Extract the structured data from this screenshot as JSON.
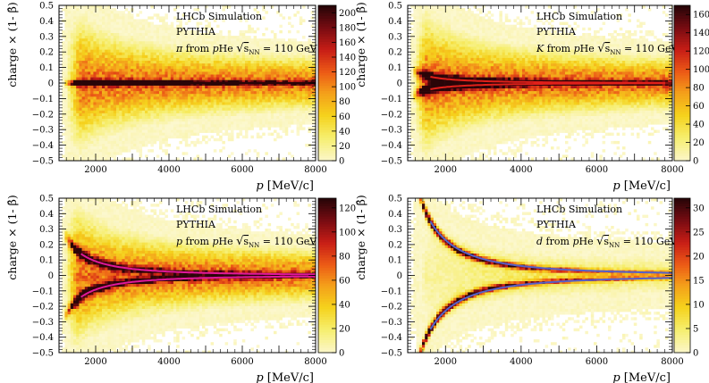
{
  "figure": {
    "experiment_label": "LHCb Simulation",
    "generator_label": "PYTHIA",
    "sqrt_s_text": "s",
    "sqrt_s_subscript": "NN",
    "energy_text": "= 110 GeV",
    "ylabel": "charge × (1- β̂)",
    "xlabel_main": "p",
    "xlabel_unit": "[MeV/c]"
  },
  "colormap": [
    "#ffffff",
    "#fbf6c2",
    "#f6ee6c",
    "#f5d21c",
    "#f4a11a",
    "#ec5a16",
    "#c81e16",
    "#7a0c12",
    "#2a0508"
  ],
  "chart_data": [
    {
      "type": "heatmap",
      "panel": "top-left",
      "particle": "π",
      "particle_text": "π from pHe",
      "x_range": [
        1000,
        8000
      ],
      "y_range": [
        -0.5,
        0.5
      ],
      "x_ticks": [
        2000,
        4000,
        6000,
        8000
      ],
      "y_ticks": [
        -0.5,
        -0.4,
        -0.3,
        -0.2,
        -0.1,
        0,
        0.1,
        0.2,
        0.3,
        0.4,
        0.5
      ],
      "z_range": [
        0,
        210
      ],
      "z_ticks": [
        0,
        20,
        40,
        60,
        80,
        100,
        120,
        140,
        160,
        180,
        200
      ],
      "expected_band": {
        "A": 0.0,
        "x_start": 1600,
        "color": "#2a0508"
      }
    },
    {
      "type": "heatmap",
      "panel": "top-right",
      "particle": "K",
      "particle_text": "K from pHe",
      "x_range": [
        1000,
        8000
      ],
      "y_range": [
        -0.5,
        0.5
      ],
      "x_ticks": [
        2000,
        4000,
        6000,
        8000
      ],
      "y_ticks": [
        -0.5,
        -0.4,
        -0.3,
        -0.2,
        -0.1,
        0,
        0.1,
        0.2,
        0.3,
        0.4,
        0.5
      ],
      "z_range": [
        0,
        170
      ],
      "z_ticks": [
        0,
        20,
        40,
        60,
        80,
        100,
        120,
        140,
        160
      ],
      "expected_band": {
        "A": 0.04,
        "x_start": 1600,
        "color": "#e0201a"
      }
    },
    {
      "type": "heatmap",
      "panel": "bottom-left",
      "particle": "p",
      "particle_text": "p from pHe",
      "x_range": [
        1000,
        8000
      ],
      "y_range": [
        -0.5,
        0.5
      ],
      "x_ticks": [
        2000,
        4000,
        6000,
        8000
      ],
      "y_ticks": [
        -0.5,
        -0.4,
        -0.3,
        -0.2,
        -0.1,
        0,
        0.1,
        0.2,
        0.3,
        0.4,
        0.5
      ],
      "z_range": [
        0,
        128
      ],
      "z_ticks": [
        0,
        20,
        40,
        60,
        80,
        100,
        120
      ],
      "expected_band": {
        "A": 0.14,
        "x_start": 1600,
        "color": "#e0189a"
      }
    },
    {
      "type": "heatmap",
      "panel": "bottom-right",
      "particle": "d",
      "particle_text": "d from pHe",
      "x_range": [
        1000,
        8000
      ],
      "y_range": [
        -0.5,
        0.5
      ],
      "x_ticks": [
        2000,
        4000,
        6000,
        8000
      ],
      "y_ticks": [
        -0.5,
        -0.4,
        -0.3,
        -0.2,
        -0.1,
        0,
        0.1,
        0.2,
        0.3,
        0.4,
        0.5
      ],
      "z_range": [
        0,
        32
      ],
      "z_ticks": [
        0,
        5,
        10,
        15,
        20,
        25,
        30
      ],
      "expected_band": {
        "A": 0.35,
        "x_start": 1600,
        "color": "#5560c8"
      }
    }
  ]
}
